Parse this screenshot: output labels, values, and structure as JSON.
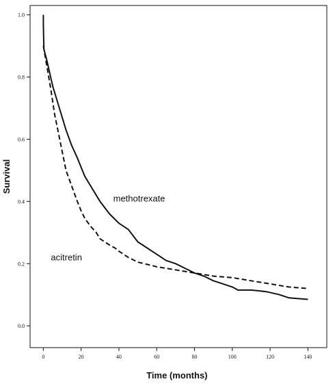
{
  "chart_data": {
    "type": "line",
    "title": "",
    "xlabel": "Time (months)",
    "ylabel": "Survival",
    "xlim": [
      -7,
      150
    ],
    "ylim": [
      -0.07,
      1.03
    ],
    "xticks": [
      0,
      20,
      40,
      60,
      80,
      100,
      120,
      140
    ],
    "yticks": [
      0.0,
      0.2,
      0.4,
      0.6,
      0.8,
      1.0
    ],
    "xtick_labels": [
      "0",
      "20",
      "40",
      "60",
      "80",
      "100",
      "120",
      "140"
    ],
    "ytick_labels": [
      "0.0",
      "0.2",
      "0.4",
      "0.6",
      "0.8",
      "1.0"
    ],
    "grid": false,
    "legend": "none",
    "annotations": [
      {
        "text": "methotrexate",
        "x": 37,
        "y": 0.4
      },
      {
        "text": "acitretin",
        "x": 4,
        "y": 0.21
      }
    ],
    "series": [
      {
        "label": "methotrexate",
        "style": "solid",
        "color": "#111111",
        "x": [
          0,
          0,
          0.3,
          2,
          5,
          8,
          10,
          12,
          15,
          18,
          20,
          22,
          25,
          28,
          30,
          35,
          40,
          45,
          50,
          55,
          60,
          65,
          70,
          75,
          80,
          85,
          90,
          95,
          100,
          103,
          110,
          118,
          125,
          130,
          140
        ],
        "y": [
          1.0,
          0.97,
          0.89,
          0.85,
          0.77,
          0.71,
          0.67,
          0.63,
          0.58,
          0.54,
          0.51,
          0.48,
          0.45,
          0.42,
          0.4,
          0.36,
          0.33,
          0.31,
          0.27,
          0.25,
          0.23,
          0.21,
          0.2,
          0.185,
          0.17,
          0.16,
          0.145,
          0.135,
          0.125,
          0.115,
          0.115,
          0.11,
          0.1,
          0.09,
          0.085
        ]
      },
      {
        "label": "acitretin",
        "style": "dashed",
        "color": "#111111",
        "x": [
          0,
          2,
          4,
          6,
          8,
          10,
          12,
          15,
          18,
          20,
          22,
          25,
          28,
          30,
          35,
          38,
          40,
          45,
          50,
          60,
          70,
          80,
          90,
          100,
          110,
          120,
          130,
          140
        ],
        "y": [
          0.9,
          0.83,
          0.76,
          0.68,
          0.62,
          0.56,
          0.5,
          0.45,
          0.4,
          0.37,
          0.345,
          0.32,
          0.3,
          0.28,
          0.26,
          0.25,
          0.24,
          0.22,
          0.205,
          0.19,
          0.18,
          0.17,
          0.16,
          0.155,
          0.145,
          0.135,
          0.125,
          0.12
        ]
      }
    ]
  }
}
